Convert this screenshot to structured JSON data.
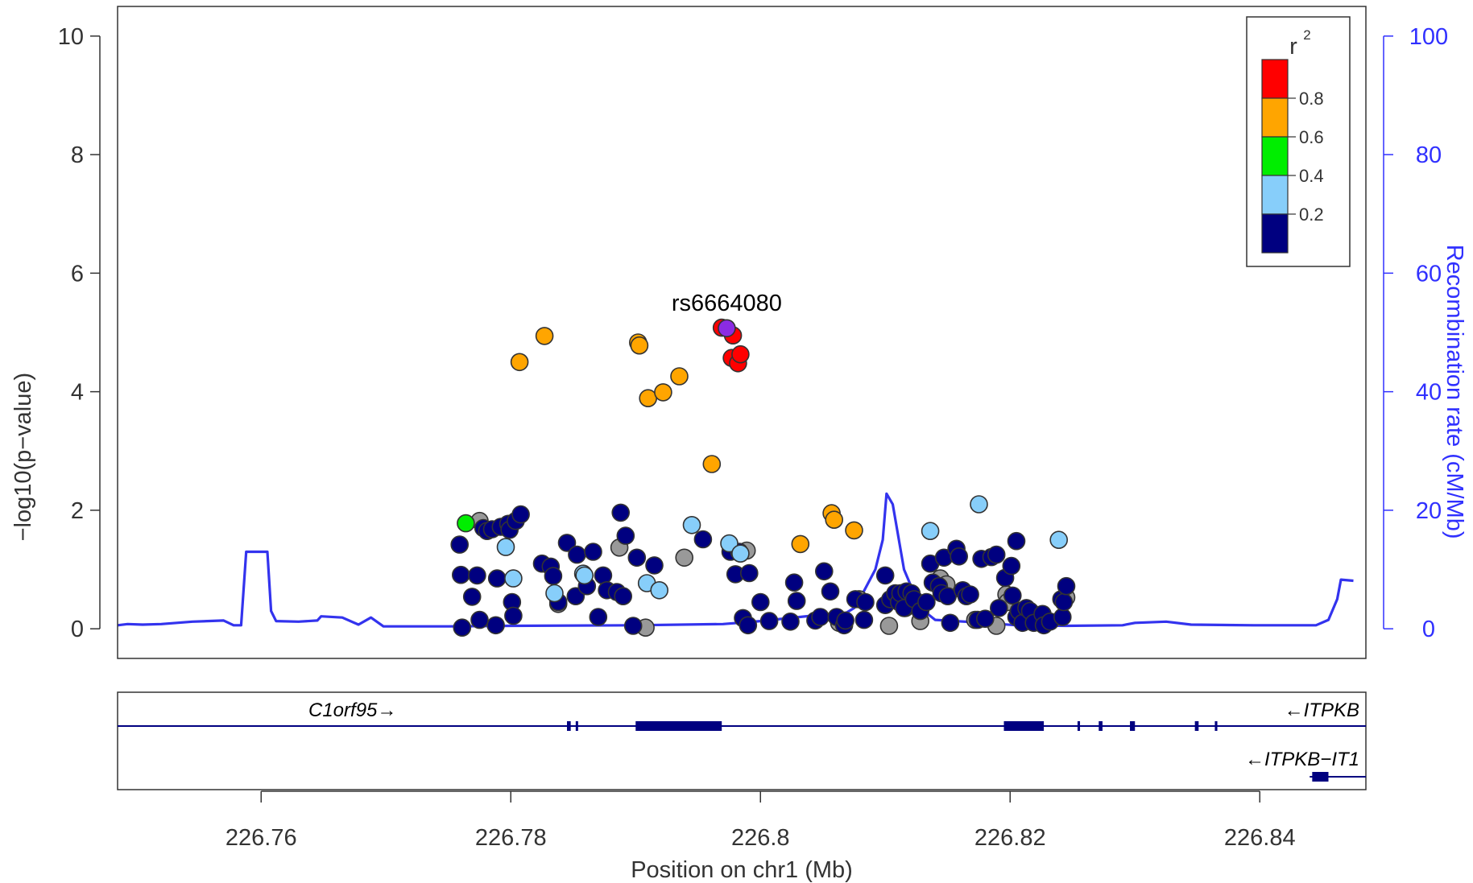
{
  "chart_data": {
    "type": "scatter",
    "ylabel_left": "−log10(p−value)",
    "ylabel_right": "Recombination rate (cM/Mb)",
    "xlabel": "Position on chr1 (Mb)",
    "xlim": [
      226.7485,
      226.8485
    ],
    "ylim": [
      -0.5,
      10.5
    ],
    "ylim_right": [
      -5,
      105
    ],
    "x_ticks": [
      226.76,
      226.78,
      226.8,
      226.82,
      226.84
    ],
    "x_tick_labels": [
      "226.76",
      "226.78",
      "226.8",
      "226.82",
      "226.84"
    ],
    "y_ticks": [
      0,
      2,
      4,
      6,
      8,
      10
    ],
    "y_ticks_right": [
      0,
      20,
      40,
      60,
      80,
      100
    ],
    "lead_snp": {
      "label": "rs6664080",
      "x": 226.7973,
      "y": 5.07,
      "color": "#8B2BE2"
    },
    "legend": {
      "title": "r",
      "title_sup": "2",
      "placement": "top-right",
      "bins": [
        {
          "color": "#ff0000",
          "label": "0.8"
        },
        {
          "color": "#ffa500",
          "label": "0.6"
        },
        {
          "color": "#00ee00",
          "label": "0.4"
        },
        {
          "color": "#87cefa",
          "label": "0.2"
        },
        {
          "color": "#000080",
          "label": ""
        }
      ]
    },
    "colors": {
      "r2_08": "#ff0000",
      "r2_06": "#ffa500",
      "r2_04": "#00ee00",
      "r2_02": "#87cefa",
      "r2_00": "#000080",
      "na": "#999999",
      "recomb": "#3333ee"
    },
    "recombination_rate": [
      [
        226.7485,
        0.6
      ],
      [
        226.7493,
        0.8
      ],
      [
        226.7505,
        0.7
      ],
      [
        226.752,
        0.8
      ],
      [
        226.7545,
        1.2
      ],
      [
        226.757,
        1.4
      ],
      [
        226.7578,
        0.6
      ],
      [
        226.7584,
        0.6
      ],
      [
        226.7588,
        13
      ],
      [
        226.7605,
        13
      ],
      [
        226.7608,
        3
      ],
      [
        226.7612,
        1.3
      ],
      [
        226.763,
        1.2
      ],
      [
        226.7645,
        1.4
      ],
      [
        226.7648,
        2.1
      ],
      [
        226.7665,
        1.9
      ],
      [
        226.7678,
        0.7
      ],
      [
        226.7688,
        1.9
      ],
      [
        226.7698,
        0.4
      ],
      [
        226.775,
        0.4
      ],
      [
        226.78,
        0.5
      ],
      [
        226.79,
        0.6
      ],
      [
        226.797,
        0.8
      ],
      [
        226.8,
        1.3
      ],
      [
        226.805,
        2.4
      ],
      [
        226.8068,
        2.6
      ],
      [
        226.8075,
        3.5
      ],
      [
        226.808,
        5.2
      ],
      [
        226.8092,
        10
      ],
      [
        226.8098,
        15
      ],
      [
        226.8101,
        22.8
      ],
      [
        226.8106,
        21
      ],
      [
        226.8115,
        10
      ],
      [
        226.8128,
        3.5
      ],
      [
        226.814,
        1.5
      ],
      [
        226.818,
        1
      ],
      [
        226.8205,
        0.6
      ],
      [
        226.8245,
        0.5
      ],
      [
        226.829,
        0.6
      ],
      [
        226.83,
        1
      ],
      [
        226.8325,
        1.2
      ],
      [
        226.8345,
        0.7
      ],
      [
        226.8395,
        0.6
      ],
      [
        226.8445,
        0.6
      ],
      [
        226.8455,
        1.5
      ],
      [
        226.8462,
        5
      ],
      [
        226.8465,
        8.3
      ],
      [
        226.8475,
        8.1
      ]
    ],
    "points": {
      "r2_08": [
        [
          226.7969,
          5.08
        ],
        [
          226.7978,
          4.95
        ],
        [
          226.7977,
          4.57
        ],
        [
          226.7982,
          4.48
        ],
        [
          226.7984,
          4.63
        ]
      ],
      "r2_06": [
        [
          226.7807,
          4.5
        ],
        [
          226.7827,
          4.94
        ],
        [
          226.7902,
          4.83
        ],
        [
          226.7903,
          4.78
        ],
        [
          226.791,
          3.89
        ],
        [
          226.7922,
          3.99
        ],
        [
          226.7935,
          4.26
        ],
        [
          226.7961,
          2.78
        ],
        [
          226.8032,
          1.43
        ],
        [
          226.8057,
          1.95
        ],
        [
          226.8059,
          1.84
        ],
        [
          226.8075,
          1.66
        ]
      ],
      "r2_04": [
        [
          226.7764,
          1.78
        ]
      ],
      "r2_02": [
        [
          226.7796,
          1.38
        ],
        [
          226.7802,
          0.85
        ],
        [
          226.7835,
          0.6
        ],
        [
          226.7858,
          0.93
        ],
        [
          226.7859,
          0.9
        ],
        [
          226.7909,
          0.77
        ],
        [
          226.7919,
          0.65
        ],
        [
          226.7945,
          1.75
        ],
        [
          226.7975,
          1.44
        ],
        [
          226.7984,
          1.27
        ],
        [
          226.8136,
          1.65
        ],
        [
          226.8175,
          2.1
        ],
        [
          226.8239,
          1.5
        ]
      ],
      "r2_00": [
        [
          226.7759,
          1.42
        ],
        [
          226.776,
          0.91
        ],
        [
          226.7761,
          0.02
        ],
        [
          226.7769,
          0.54
        ],
        [
          226.7773,
          0.9
        ],
        [
          226.7775,
          0.15
        ],
        [
          226.7778,
          1.7
        ],
        [
          226.7781,
          1.65
        ],
        [
          226.7785,
          1.68
        ],
        [
          226.7788,
          0.06
        ],
        [
          226.7789,
          0.85
        ],
        [
          226.7792,
          1.72
        ],
        [
          226.7798,
          1.77
        ],
        [
          226.7799,
          1.67
        ],
        [
          226.7801,
          0.45
        ],
        [
          226.7802,
          0.22
        ],
        [
          226.7804,
          1.82
        ],
        [
          226.7808,
          1.93
        ],
        [
          226.7825,
          1.1
        ],
        [
          226.7832,
          1.05
        ],
        [
          226.7834,
          0.89
        ],
        [
          226.7838,
          0.45
        ],
        [
          226.7845,
          1.45
        ],
        [
          226.7852,
          0.55
        ],
        [
          226.7853,
          1.25
        ],
        [
          226.7861,
          0.72
        ],
        [
          226.7866,
          1.3
        ],
        [
          226.787,
          0.2
        ],
        [
          226.7874,
          0.9
        ],
        [
          226.7877,
          0.65
        ],
        [
          226.7885,
          0.62
        ],
        [
          226.7888,
          1.96
        ],
        [
          226.789,
          0.55
        ],
        [
          226.7892,
          1.57
        ],
        [
          226.7898,
          0.05
        ],
        [
          226.7901,
          1.2
        ],
        [
          226.7915,
          1.07
        ],
        [
          226.7954,
          1.51
        ],
        [
          226.7976,
          1.3
        ],
        [
          226.798,
          0.92
        ],
        [
          226.7983,
          1.3
        ],
        [
          226.7986,
          0.18
        ],
        [
          226.799,
          0.06
        ],
        [
          226.7991,
          0.94
        ],
        [
          226.8,
          0.45
        ],
        [
          226.8007,
          0.13
        ],
        [
          226.8024,
          0.12
        ],
        [
          226.8027,
          0.78
        ],
        [
          226.8029,
          0.47
        ],
        [
          226.8044,
          0.14
        ],
        [
          226.8048,
          0.2
        ],
        [
          226.8051,
          0.97
        ],
        [
          226.8056,
          0.63
        ],
        [
          226.8061,
          0.2
        ],
        [
          226.8067,
          0.06
        ],
        [
          226.8068,
          0.14
        ],
        [
          226.8076,
          0.5
        ],
        [
          226.8083,
          0.15
        ],
        [
          226.8084,
          0.45
        ],
        [
          226.81,
          0.9
        ],
        [
          226.81,
          0.4
        ],
        [
          226.8104,
          0.5
        ],
        [
          226.8108,
          0.6
        ],
        [
          226.8111,
          0.45
        ],
        [
          226.8112,
          0.6
        ],
        [
          226.8115,
          0.35
        ],
        [
          226.8117,
          0.63
        ],
        [
          226.8121,
          0.6
        ],
        [
          226.8123,
          0.5
        ],
        [
          226.8128,
          0.3
        ],
        [
          226.8133,
          0.45
        ],
        [
          226.8136,
          1.1
        ],
        [
          226.8138,
          0.78
        ],
        [
          226.8143,
          0.72
        ],
        [
          226.8145,
          0.6
        ],
        [
          226.8147,
          1.2
        ],
        [
          226.815,
          0.55
        ],
        [
          226.8152,
          0.1
        ],
        [
          226.8157,
          1.35
        ],
        [
          226.8159,
          1.22
        ],
        [
          226.8162,
          0.65
        ],
        [
          226.8165,
          0.55
        ],
        [
          226.8168,
          0.58
        ],
        [
          226.8174,
          0.15
        ],
        [
          226.8177,
          1.18
        ],
        [
          226.818,
          0.17
        ],
        [
          226.8185,
          1.21
        ],
        [
          226.8189,
          1.25
        ],
        [
          226.8191,
          0.35
        ],
        [
          226.8196,
          0.86
        ],
        [
          226.8201,
          1.06
        ],
        [
          226.8202,
          0.56
        ],
        [
          226.8205,
          0.2
        ],
        [
          226.8205,
          1.48
        ],
        [
          226.8207,
          0.3
        ],
        [
          226.821,
          0.1
        ],
        [
          226.8213,
          0.35
        ],
        [
          226.8216,
          0.3
        ],
        [
          226.8219,
          0.1
        ],
        [
          226.8226,
          0.25
        ],
        [
          226.8227,
          0.06
        ],
        [
          226.8232,
          0.12
        ],
        [
          226.8241,
          0.5
        ],
        [
          226.8242,
          0.2
        ],
        [
          226.8243,
          0.45
        ],
        [
          226.8245,
          0.72
        ]
      ],
      "na": [
        [
          226.7775,
          1.82
        ],
        [
          226.7838,
          0.42
        ],
        [
          226.7887,
          1.37
        ],
        [
          226.7908,
          0.02
        ],
        [
          226.7939,
          1.2
        ],
        [
          226.7989,
          1.32
        ],
        [
          226.8063,
          0.1
        ],
        [
          226.8079,
          0.5
        ],
        [
          226.8103,
          0.05
        ],
        [
          226.8116,
          0.35
        ],
        [
          226.8128,
          0.13
        ],
        [
          226.8144,
          0.85
        ],
        [
          226.8149,
          0.75
        ],
        [
          226.8172,
          0.15
        ],
        [
          226.8189,
          0.05
        ],
        [
          226.8197,
          0.58
        ],
        [
          226.8198,
          0.45
        ],
        [
          226.8218,
          0.2
        ],
        [
          226.8245,
          0.53
        ]
      ]
    }
  },
  "gene_track": {
    "genes": [
      {
        "label": "C1orf95→",
        "strand": "+",
        "start": 226.7485,
        "end": 226.7969,
        "exons": [
          [
            226.7845,
            226.7848
          ],
          [
            226.7852,
            226.7853
          ],
          [
            226.79,
            226.7969
          ]
        ]
      },
      {
        "label": "←ITPKB",
        "strand": "-",
        "start": 226.7969,
        "end": 226.8485,
        "exons": [
          [
            226.8195,
            226.8227
          ],
          [
            226.8254,
            226.8256
          ],
          [
            226.8271,
            226.8274
          ],
          [
            226.8296,
            226.83
          ],
          [
            226.8348,
            226.8351
          ],
          [
            226.8364,
            226.8366
          ]
        ]
      },
      {
        "label": "←ITPKB−IT1",
        "strand": "-",
        "start": 226.844,
        "end": 226.8485,
        "exons": [
          [
            226.8442,
            226.8455
          ]
        ]
      }
    ]
  }
}
